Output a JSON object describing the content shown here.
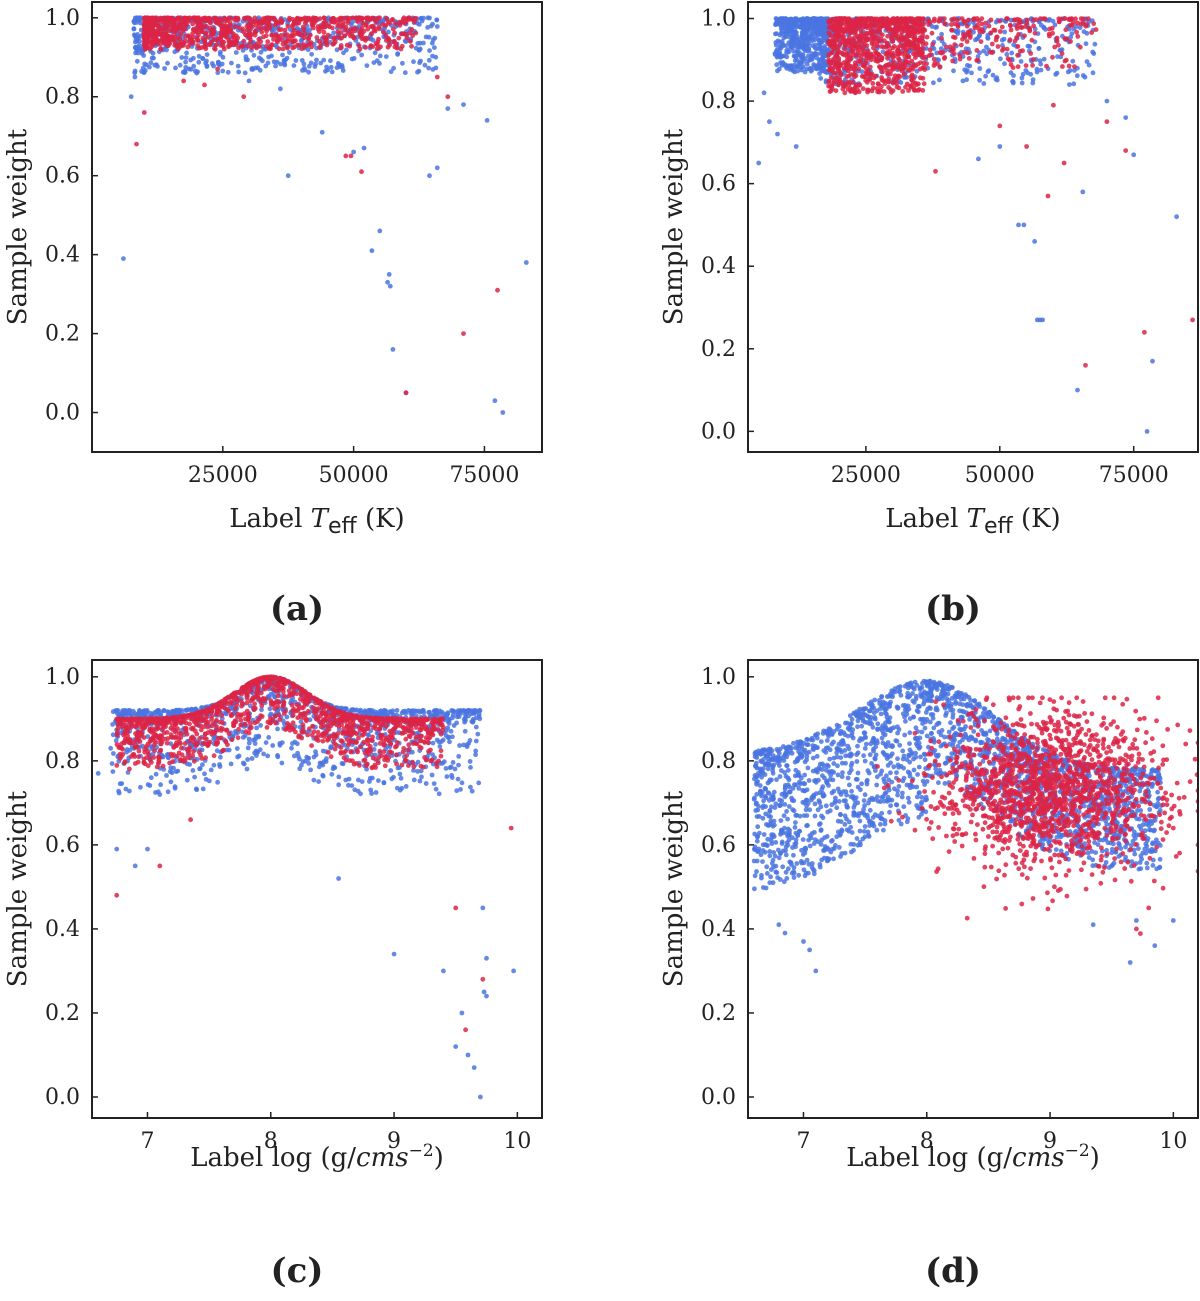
{
  "colors": {
    "blue": "#4a74e0",
    "red": "#dc2446",
    "axis": "#222222"
  },
  "chart_data": [
    {
      "type": "scatter",
      "caption": "(a)",
      "xlabel": "Label T_eff (K)",
      "xlabel_parts": {
        "prefix": "Label ",
        "var": "T",
        "sub": "eff",
        "suffix": " (K)"
      },
      "ylabel": "Sample weight",
      "xlim": [
        0,
        86000
      ],
      "ylim": [
        -0.1,
        1.04
      ],
      "xticks": [
        25000,
        50000,
        75000
      ],
      "xtick_labels": [
        "25000",
        "50000",
        "75000"
      ],
      "yticks": [
        0.0,
        0.2,
        0.4,
        0.6,
        0.8,
        1.0
      ],
      "ytick_labels": [
        "0.0",
        "0.2",
        "0.4",
        "0.6",
        "0.8",
        "1.0"
      ],
      "series": [
        {
          "name": "blue",
          "color": "#4a74e0",
          "cloud": {
            "x_range": [
              8000,
              66000
            ],
            "y_range": [
              0.86,
              1.0
            ],
            "count": 650,
            "seed": 11,
            "x_bias": 1.4
          },
          "outliers": [
            [
              6000,
              0.39
            ],
            [
              7500,
              0.8
            ],
            [
              8200,
              0.85
            ],
            [
              9000,
              0.93
            ],
            [
              12000,
              0.88
            ],
            [
              20000,
              0.86
            ],
            [
              30000,
              0.84
            ],
            [
              36000,
              0.82
            ],
            [
              37500,
              0.6
            ],
            [
              44000,
              0.71
            ],
            [
              50000,
              0.66
            ],
            [
              52000,
              0.67
            ],
            [
              53500,
              0.41
            ],
            [
              55000,
              0.46
            ],
            [
              56500,
              0.33
            ],
            [
              56800,
              0.35
            ],
            [
              57000,
              0.32
            ],
            [
              57500,
              0.16
            ],
            [
              60000,
              0.05
            ],
            [
              64500,
              0.6
            ],
            [
              66000,
              0.62
            ],
            [
              68000,
              0.77
            ],
            [
              71000,
              0.78
            ],
            [
              75500,
              0.74
            ],
            [
              77000,
              0.03
            ],
            [
              78500,
              0.0
            ],
            [
              83000,
              0.38
            ]
          ]
        },
        {
          "name": "red",
          "color": "#dc2446",
          "cloud": {
            "x_range": [
              10000,
              62000
            ],
            "y_range": [
              0.92,
              1.0
            ],
            "count": 900,
            "seed": 23,
            "x_bias": 1.8
          },
          "outliers": [
            [
              8500,
              0.68
            ],
            [
              10000,
              0.76
            ],
            [
              17500,
              0.84
            ],
            [
              21500,
              0.83
            ],
            [
              24000,
              0.87
            ],
            [
              29000,
              0.8
            ],
            [
              48500,
              0.65
            ],
            [
              49500,
              0.65
            ],
            [
              51500,
              0.61
            ],
            [
              60000,
              0.05
            ],
            [
              66000,
              0.85
            ],
            [
              68000,
              0.8
            ],
            [
              71000,
              0.2
            ],
            [
              77500,
              0.31
            ]
          ]
        }
      ]
    },
    {
      "type": "scatter",
      "caption": "(b)",
      "xlabel": "Label T_eff (K)",
      "xlabel_parts": {
        "prefix": "Label ",
        "var": "T",
        "sub": "eff",
        "suffix": " (K)"
      },
      "ylabel": "Sample weight",
      "xlim": [
        3000,
        87000
      ],
      "ylim": [
        -0.05,
        1.04
      ],
      "xticks": [
        25000,
        50000,
        75000
      ],
      "xtick_labels": [
        "25000",
        "50000",
        "75000"
      ],
      "yticks": [
        0.0,
        0.2,
        0.4,
        0.6,
        0.8,
        1.0
      ],
      "ytick_labels": [
        "0.0",
        "0.2",
        "0.4",
        "0.6",
        "0.8",
        "1.0"
      ],
      "series": [
        {
          "name": "blue",
          "color": "#4a74e0",
          "cloud": {
            "x_range": [
              8000,
              18000
            ],
            "y_range": [
              0.87,
              1.0
            ],
            "count": 450,
            "seed": 31,
            "x_bias": 1.0
          },
          "cloud2": {
            "x_range": [
              16000,
              68000
            ],
            "y_range": [
              0.84,
              1.0
            ],
            "count": 500,
            "seed": 37,
            "x_bias": 1.5
          },
          "outliers": [
            [
              5000,
              0.65
            ],
            [
              6000,
              0.82
            ],
            [
              7000,
              0.75
            ],
            [
              8500,
              0.72
            ],
            [
              12000,
              0.69
            ],
            [
              46000,
              0.66
            ],
            [
              50000,
              0.69
            ],
            [
              53500,
              0.5
            ],
            [
              54500,
              0.5
            ],
            [
              56500,
              0.46
            ],
            [
              57000,
              0.27
            ],
            [
              57500,
              0.27
            ],
            [
              58000,
              0.27
            ],
            [
              63000,
              0.84
            ],
            [
              64500,
              0.1
            ],
            [
              65500,
              0.58
            ],
            [
              70000,
              0.8
            ],
            [
              73500,
              0.76
            ],
            [
              75000,
              0.67
            ],
            [
              77500,
              0.0
            ],
            [
              78500,
              0.17
            ],
            [
              83000,
              0.52
            ]
          ]
        },
        {
          "name": "red",
          "color": "#dc2446",
          "cloud": {
            "x_range": [
              18000,
              36000
            ],
            "y_range": [
              0.82,
              1.0
            ],
            "count": 800,
            "seed": 43,
            "x_bias": 1.2
          },
          "cloud2": {
            "x_range": [
              30000,
              68000
            ],
            "y_range": [
              0.88,
              1.0
            ],
            "count": 250,
            "seed": 47,
            "x_bias": 1.3
          },
          "outliers": [
            [
              38000,
              0.63
            ],
            [
              50000,
              0.74
            ],
            [
              55000,
              0.69
            ],
            [
              59000,
              0.57
            ],
            [
              60000,
              0.79
            ],
            [
              62000,
              0.65
            ],
            [
              66000,
              0.16
            ],
            [
              70000,
              0.75
            ],
            [
              73500,
              0.68
            ],
            [
              77000,
              0.24
            ],
            [
              86000,
              0.27
            ]
          ]
        }
      ]
    },
    {
      "type": "scatter",
      "caption": "(c)",
      "xlabel": "Label log (g/cms^-2)",
      "xlabel_parts": {
        "prefix": "Label log (g/",
        "var": "cms",
        "sup": "−2",
        "suffix": ")"
      },
      "ylabel": "Sample weight",
      "xlim": [
        6.55,
        10.2
      ],
      "ylim": [
        -0.05,
        1.04
      ],
      "xticks": [
        7,
        8,
        9,
        10
      ],
      "xtick_labels": [
        "7",
        "8",
        "9",
        "10"
      ],
      "yticks": [
        0.0,
        0.2,
        0.4,
        0.6,
        0.8,
        1.0
      ],
      "ytick_labels": [
        "0.0",
        "0.2",
        "0.4",
        "0.6",
        "0.8",
        "1.0"
      ],
      "series": [
        {
          "name": "blue",
          "color": "#4a74e0",
          "peak": {
            "x_range": [
              6.7,
              9.7
            ],
            "center": 8.0,
            "top": 1.0,
            "base": 0.92,
            "width": 0.25,
            "spread": 0.2,
            "count": 1100,
            "seed": 53
          },
          "outliers": [
            [
              6.6,
              0.77
            ],
            [
              6.75,
              0.59
            ],
            [
              6.9,
              0.55
            ],
            [
              7.0,
              0.59
            ],
            [
              7.1,
              0.72
            ],
            [
              8.55,
              0.52
            ],
            [
              9.0,
              0.34
            ],
            [
              9.4,
              0.3
            ],
            [
              9.5,
              0.12
            ],
            [
              9.55,
              0.2
            ],
            [
              9.6,
              0.1
            ],
            [
              9.65,
              0.07
            ],
            [
              9.7,
              0.0
            ],
            [
              9.72,
              0.45
            ],
            [
              9.73,
              0.25
            ],
            [
              9.75,
              0.24
            ],
            [
              9.75,
              0.33
            ],
            [
              9.97,
              0.3
            ]
          ]
        },
        {
          "name": "red",
          "color": "#dc2446",
          "peak": {
            "x_range": [
              6.75,
              9.4
            ],
            "center": 8.0,
            "top": 1.0,
            "base": 0.9,
            "width": 0.3,
            "spread": 0.12,
            "count": 1300,
            "seed": 59
          },
          "outliers": [
            [
              6.75,
              0.48
            ],
            [
              7.1,
              0.55
            ],
            [
              7.35,
              0.66
            ],
            [
              9.5,
              0.45
            ],
            [
              9.58,
              0.16
            ],
            [
              9.72,
              0.28
            ],
            [
              9.95,
              0.64
            ]
          ]
        }
      ]
    },
    {
      "type": "scatter",
      "caption": "(d)",
      "xlabel": "Label log (g/cms^-2)",
      "xlabel_parts": {
        "prefix": "Label log (g/",
        "var": "cms",
        "sup": "−2",
        "suffix": ")"
      },
      "ylabel": "Sample weight",
      "xlim": [
        6.55,
        10.2
      ],
      "ylim": [
        -0.05,
        1.04
      ],
      "xticks": [
        7,
        8,
        9,
        10
      ],
      "xtick_labels": [
        "7",
        "8",
        "9",
        "10"
      ],
      "yticks": [
        0.0,
        0.2,
        0.4,
        0.6,
        0.8,
        1.0
      ],
      "ytick_labels": [
        "0.0",
        "0.2",
        "0.4",
        "0.6",
        "0.8",
        "1.0"
      ],
      "series": [
        {
          "name": "blue",
          "color": "#4a74e0",
          "broad": {
            "x_range": [
              6.6,
              9.9
            ],
            "center": 8.0,
            "top": 0.99,
            "base_left": 0.86,
            "base_right": 0.82,
            "width": 0.55,
            "spread": 0.3,
            "count": 2400,
            "seed": 61
          },
          "outliers": [
            [
              6.7,
              0.6
            ],
            [
              6.8,
              0.41
            ],
            [
              6.85,
              0.39
            ],
            [
              7.0,
              0.37
            ],
            [
              7.05,
              0.35
            ],
            [
              7.1,
              0.3
            ],
            [
              9.35,
              0.41
            ],
            [
              9.65,
              0.32
            ],
            [
              9.7,
              0.42
            ],
            [
              9.85,
              0.36
            ],
            [
              10.0,
              0.42
            ]
          ]
        },
        {
          "name": "red",
          "color": "#dc2446",
          "blob": {
            "x_range": [
              7.6,
              10.2
            ],
            "center_x": 9.0,
            "center_y": 0.73,
            "sx": 0.45,
            "sy": 0.09,
            "count": 1500,
            "seed": 67
          },
          "outliers": [
            [
              8.5,
              0.62
            ],
            [
              9.7,
              0.4
            ],
            [
              9.8,
              0.45
            ],
            [
              10.0,
              0.64
            ],
            [
              10.2,
              0.6
            ],
            [
              10.1,
              0.84
            ]
          ]
        }
      ]
    }
  ]
}
